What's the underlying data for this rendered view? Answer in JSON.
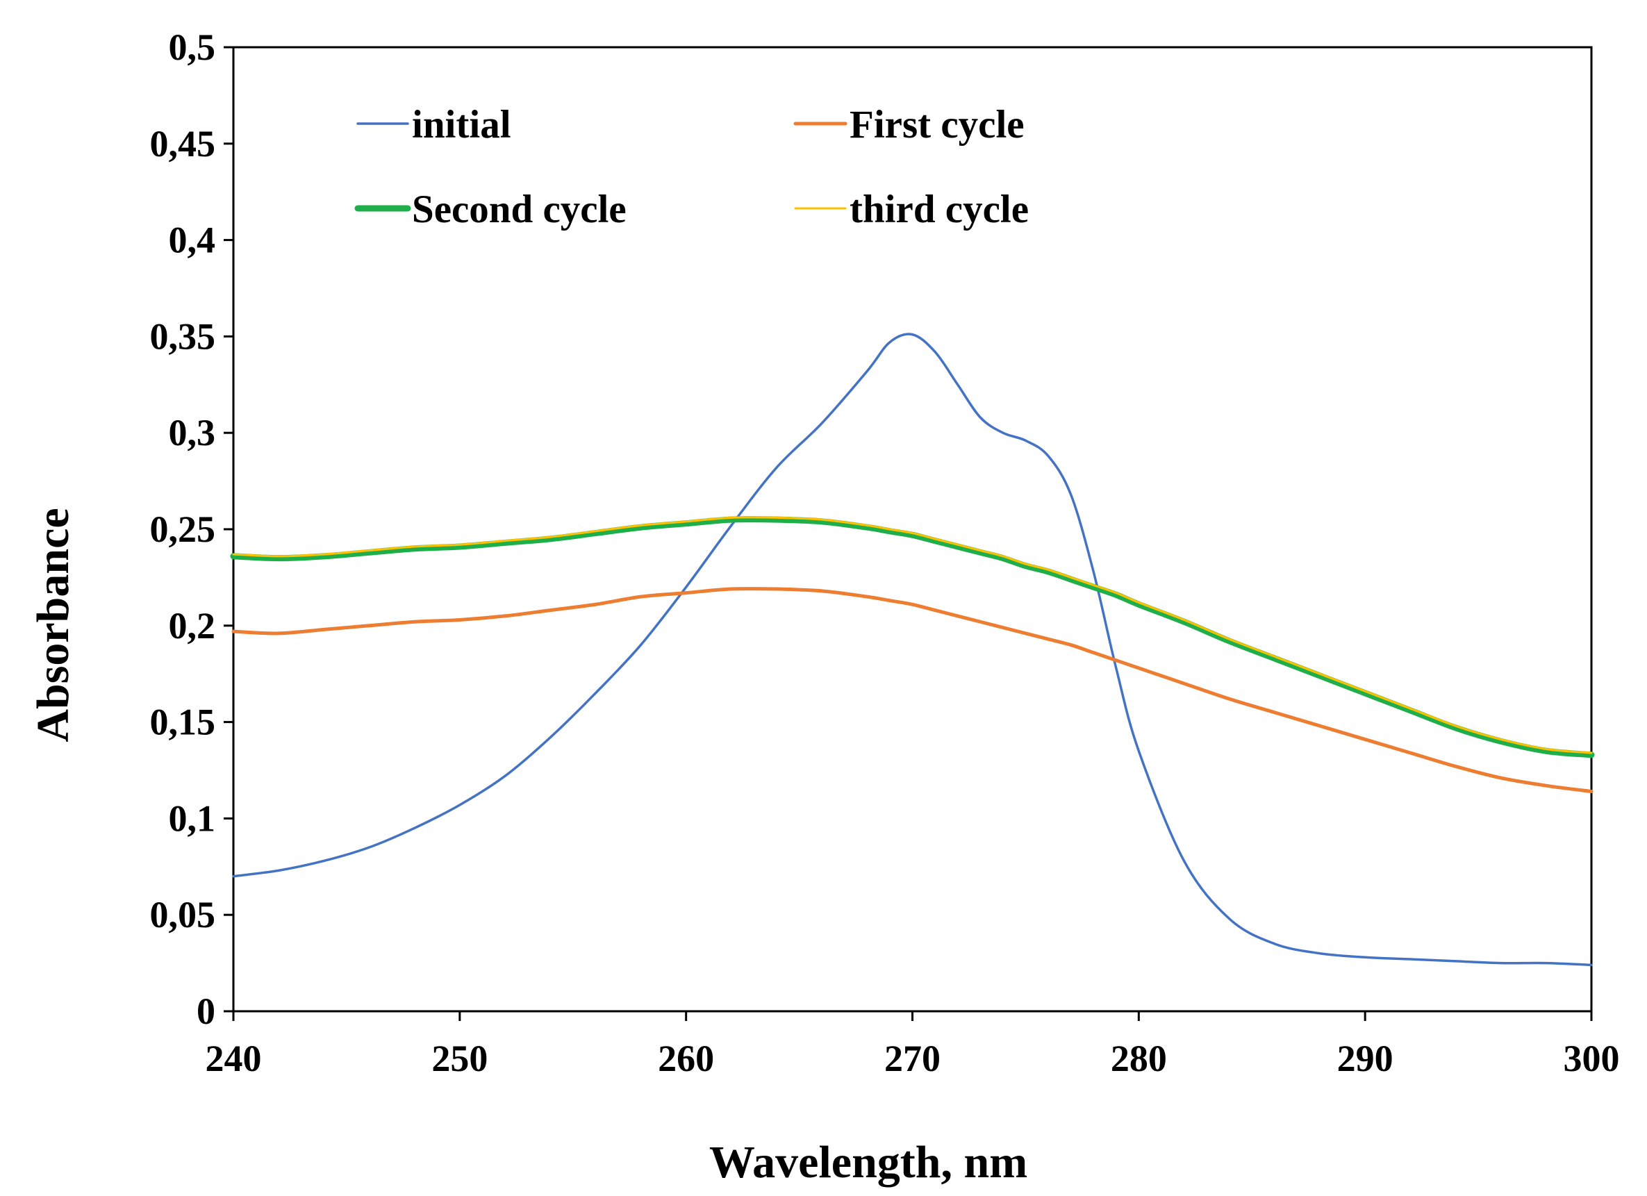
{
  "chart_data": {
    "type": "line",
    "title": "",
    "xlabel": "Wavelength, nm",
    "ylabel": "Absorbance",
    "xlim": [
      240,
      300
    ],
    "ylim": [
      0,
      0.5
    ],
    "x_ticks": [
      240,
      250,
      260,
      270,
      280,
      290,
      300
    ],
    "x_tick_labels": [
      "240",
      "250",
      "260",
      "270",
      "280",
      "290",
      "300"
    ],
    "y_ticks": [
      0,
      0.05,
      0.1,
      0.15,
      0.2,
      0.25,
      0.3,
      0.35,
      0.4,
      0.45,
      0.5
    ],
    "y_tick_labels": [
      "0",
      "0,05",
      "0,1",
      "0,15",
      "0,2",
      "0,25",
      "0,3",
      "0,35",
      "0,4",
      "0,45",
      "0,5"
    ],
    "grid": false,
    "legend_position": "top-inside",
    "x": [
      240,
      242,
      244,
      246,
      248,
      250,
      252,
      254,
      256,
      258,
      260,
      262,
      264,
      266,
      268,
      269,
      270,
      271,
      272,
      273,
      274,
      275,
      276,
      277,
      278,
      279,
      280,
      282,
      284,
      286,
      288,
      290,
      292,
      294,
      296,
      298,
      300
    ],
    "series": [
      {
        "name": "initial",
        "color": "#4472C4",
        "values": [
          0.07,
          0.073,
          0.078,
          0.085,
          0.095,
          0.107,
          0.122,
          0.142,
          0.165,
          0.19,
          0.22,
          0.252,
          0.282,
          0.305,
          0.332,
          0.347,
          0.351,
          0.342,
          0.325,
          0.308,
          0.3,
          0.296,
          0.288,
          0.268,
          0.228,
          0.178,
          0.135,
          0.078,
          0.048,
          0.035,
          0.03,
          0.028,
          0.027,
          0.026,
          0.025,
          0.025,
          0.024
        ]
      },
      {
        "name": "First cycle",
        "color": "#ED7D31",
        "values": [
          0.197,
          0.196,
          0.198,
          0.2,
          0.202,
          0.203,
          0.205,
          0.208,
          0.211,
          0.215,
          0.217,
          0.219,
          0.219,
          0.218,
          0.215,
          0.213,
          0.211,
          0.208,
          0.205,
          0.202,
          0.199,
          0.196,
          0.193,
          0.19,
          0.186,
          0.182,
          0.178,
          0.17,
          0.162,
          0.155,
          0.148,
          0.141,
          0.134,
          0.127,
          0.121,
          0.117,
          0.114
        ]
      },
      {
        "name": "Second cycle",
        "color": "#1EAF4B",
        "values": [
          0.236,
          0.235,
          0.236,
          0.238,
          0.24,
          0.241,
          0.243,
          0.245,
          0.248,
          0.251,
          0.253,
          0.255,
          0.255,
          0.254,
          0.251,
          0.249,
          0.247,
          0.244,
          0.241,
          0.238,
          0.235,
          0.231,
          0.228,
          0.224,
          0.22,
          0.216,
          0.211,
          0.202,
          0.192,
          0.183,
          0.174,
          0.165,
          0.156,
          0.147,
          0.14,
          0.135,
          0.133
        ]
      },
      {
        "name": "third cycle",
        "color": "#FFC000",
        "values": [
          0.237,
          0.236,
          0.237,
          0.239,
          0.241,
          0.242,
          0.244,
          0.246,
          0.249,
          0.252,
          0.254,
          0.256,
          0.256,
          0.255,
          0.252,
          0.25,
          0.248,
          0.245,
          0.242,
          0.239,
          0.236,
          0.232,
          0.229,
          0.225,
          0.221,
          0.217,
          0.212,
          0.203,
          0.193,
          0.184,
          0.175,
          0.166,
          0.157,
          0.148,
          0.141,
          0.136,
          0.134
        ]
      }
    ],
    "legend": [
      {
        "name": "initial",
        "color": "#4472C4"
      },
      {
        "name": "First cycle",
        "color": "#ED7D31"
      },
      {
        "name": "Second cycle",
        "color": "#1EAF4B"
      },
      {
        "name": "third cycle",
        "color": "#FFC000"
      }
    ]
  }
}
